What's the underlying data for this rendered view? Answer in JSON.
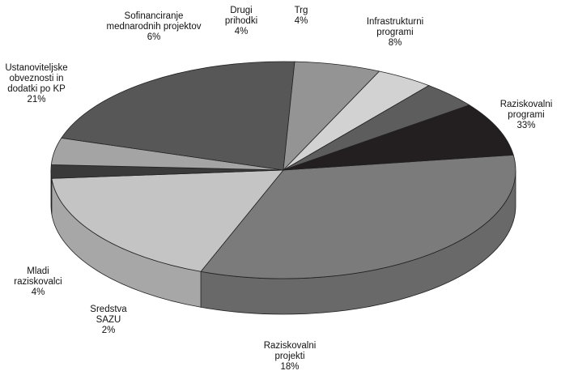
{
  "chart_data": {
    "type": "pie",
    "style": "3d",
    "title": "",
    "unit": "%",
    "slices": [
      {
        "label": [
          "Raziskovalni",
          "programi"
        ],
        "value": 33,
        "display": "33%",
        "color": "#7b7b7b"
      },
      {
        "label": [
          "Raziskovalni",
          "projekti"
        ],
        "value": 18,
        "display": "18%",
        "color": "#c4c4c4"
      },
      {
        "label": [
          "Sredstva",
          "SAZU"
        ],
        "value": 2,
        "display": "2%",
        "color": "#3a3a3a"
      },
      {
        "label": [
          "Mladi",
          "raziskovalci"
        ],
        "value": 4,
        "display": "4%",
        "color": "#a4a4a4"
      },
      {
        "label": [
          "Ustanoviteljske",
          "obveznosti in",
          "dodatki po KP"
        ],
        "value": 21,
        "display": "21%",
        "color": "#575757"
      },
      {
        "label": [
          "Sofinanciranje",
          "mednarodnih projektov"
        ],
        "value": 6,
        "display": "6%",
        "color": "#949494"
      },
      {
        "label": [
          "Drugi",
          "prihodki"
        ],
        "value": 4,
        "display": "4%",
        "color": "#d2d2d2"
      },
      {
        "label": [
          "Trg"
        ],
        "value": 4,
        "display": "4%",
        "color": "#5d5d5d"
      },
      {
        "label": [
          "Infrastrukturni",
          "programi"
        ],
        "value": 8,
        "display": "8%",
        "color": "#231f20"
      }
    ]
  }
}
